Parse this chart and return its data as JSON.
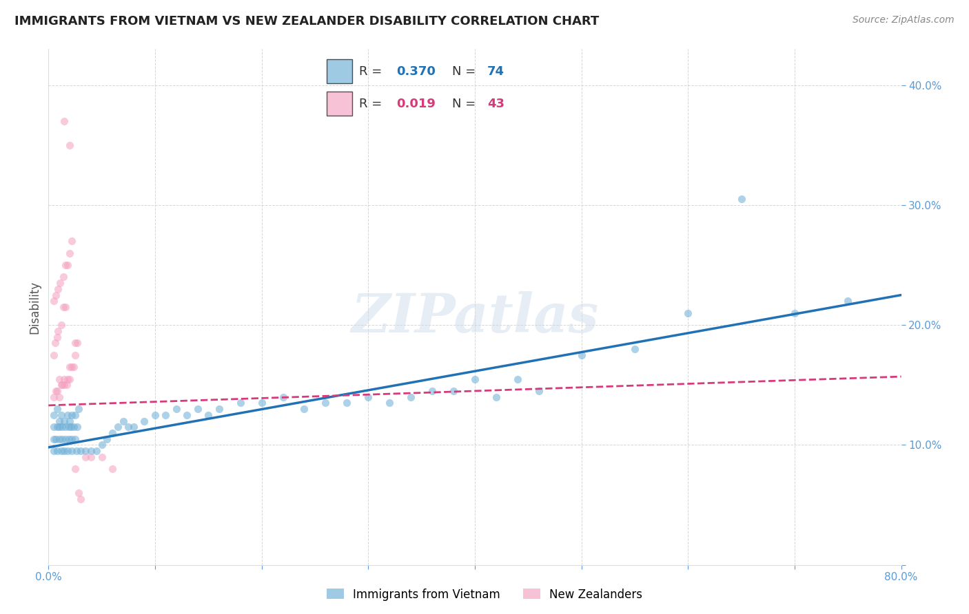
{
  "title": "IMMIGRANTS FROM VIETNAM VS NEW ZEALANDER DISABILITY CORRELATION CHART",
  "source": "Source: ZipAtlas.com",
  "ylabel": "Disability",
  "xlim": [
    0.0,
    0.8
  ],
  "ylim": [
    0.0,
    0.43
  ],
  "xticks": [
    0.0,
    0.1,
    0.2,
    0.3,
    0.4,
    0.5,
    0.6,
    0.7,
    0.8
  ],
  "xticklabels": [
    "0.0%",
    "",
    "",
    "",
    "",
    "",
    "",
    "",
    "80.0%"
  ],
  "yticks": [
    0.0,
    0.1,
    0.2,
    0.3,
    0.4
  ],
  "yticklabels": [
    "",
    "10.0%",
    "20.0%",
    "30.0%",
    "40.0%"
  ],
  "blue_color": "#6baed6",
  "pink_color": "#f4a0c0",
  "blue_line_color": "#2171b5",
  "pink_line_color": "#d63a7a",
  "grid_color": "#cccccc",
  "scatter_alpha": 0.55,
  "scatter_size": 65,
  "blue_scatter_x": [
    0.005,
    0.008,
    0.01,
    0.012,
    0.015,
    0.018,
    0.02,
    0.022,
    0.025,
    0.028,
    0.005,
    0.008,
    0.01,
    0.013,
    0.016,
    0.019,
    0.021,
    0.024,
    0.027,
    0.005,
    0.007,
    0.01,
    0.013,
    0.016,
    0.019,
    0.022,
    0.025,
    0.005,
    0.008,
    0.012,
    0.015,
    0.018,
    0.022,
    0.026,
    0.03,
    0.035,
    0.04,
    0.045,
    0.05,
    0.055,
    0.06,
    0.065,
    0.07,
    0.075,
    0.08,
    0.09,
    0.1,
    0.11,
    0.12,
    0.13,
    0.14,
    0.15,
    0.16,
    0.18,
    0.2,
    0.22,
    0.24,
    0.26,
    0.28,
    0.3,
    0.32,
    0.34,
    0.36,
    0.38,
    0.4,
    0.42,
    0.44,
    0.46,
    0.5,
    0.55,
    0.6,
    0.65,
    0.7,
    0.75
  ],
  "blue_scatter_y": [
    0.125,
    0.13,
    0.12,
    0.125,
    0.12,
    0.125,
    0.12,
    0.125,
    0.125,
    0.13,
    0.115,
    0.115,
    0.115,
    0.115,
    0.115,
    0.115,
    0.115,
    0.115,
    0.115,
    0.105,
    0.105,
    0.105,
    0.105,
    0.105,
    0.105,
    0.105,
    0.105,
    0.095,
    0.095,
    0.095,
    0.095,
    0.095,
    0.095,
    0.095,
    0.095,
    0.095,
    0.095,
    0.095,
    0.1,
    0.105,
    0.11,
    0.115,
    0.12,
    0.115,
    0.115,
    0.12,
    0.125,
    0.125,
    0.13,
    0.125,
    0.13,
    0.125,
    0.13,
    0.135,
    0.135,
    0.14,
    0.13,
    0.135,
    0.135,
    0.14,
    0.135,
    0.14,
    0.145,
    0.145,
    0.155,
    0.14,
    0.155,
    0.145,
    0.175,
    0.18,
    0.21,
    0.305,
    0.21,
    0.22
  ],
  "pink_scatter_x": [
    0.005,
    0.007,
    0.008,
    0.01,
    0.01,
    0.012,
    0.013,
    0.015,
    0.015,
    0.017,
    0.018,
    0.02,
    0.02,
    0.022,
    0.024,
    0.025,
    0.025,
    0.027,
    0.005,
    0.006,
    0.008,
    0.009,
    0.012,
    0.014,
    0.016,
    0.005,
    0.007,
    0.009,
    0.011,
    0.014,
    0.016,
    0.018,
    0.02,
    0.022,
    0.025,
    0.028,
    0.03,
    0.035,
    0.04,
    0.05,
    0.06,
    0.015,
    0.02
  ],
  "pink_scatter_y": [
    0.14,
    0.145,
    0.145,
    0.14,
    0.155,
    0.15,
    0.15,
    0.15,
    0.155,
    0.15,
    0.155,
    0.155,
    0.165,
    0.165,
    0.165,
    0.175,
    0.185,
    0.185,
    0.175,
    0.185,
    0.19,
    0.195,
    0.2,
    0.215,
    0.215,
    0.22,
    0.225,
    0.23,
    0.235,
    0.24,
    0.25,
    0.25,
    0.26,
    0.27,
    0.08,
    0.06,
    0.055,
    0.09,
    0.09,
    0.09,
    0.08,
    0.37,
    0.35
  ],
  "blue_line_x": [
    0.0,
    0.8
  ],
  "blue_line_y": [
    0.098,
    0.225
  ],
  "pink_line_x": [
    0.0,
    0.8
  ],
  "pink_line_y": [
    0.133,
    0.157
  ],
  "watermark_text": "ZIPatlas",
  "legend_r1": "0.370",
  "legend_n1": "74",
  "legend_r2": "0.019",
  "legend_n2": "43"
}
